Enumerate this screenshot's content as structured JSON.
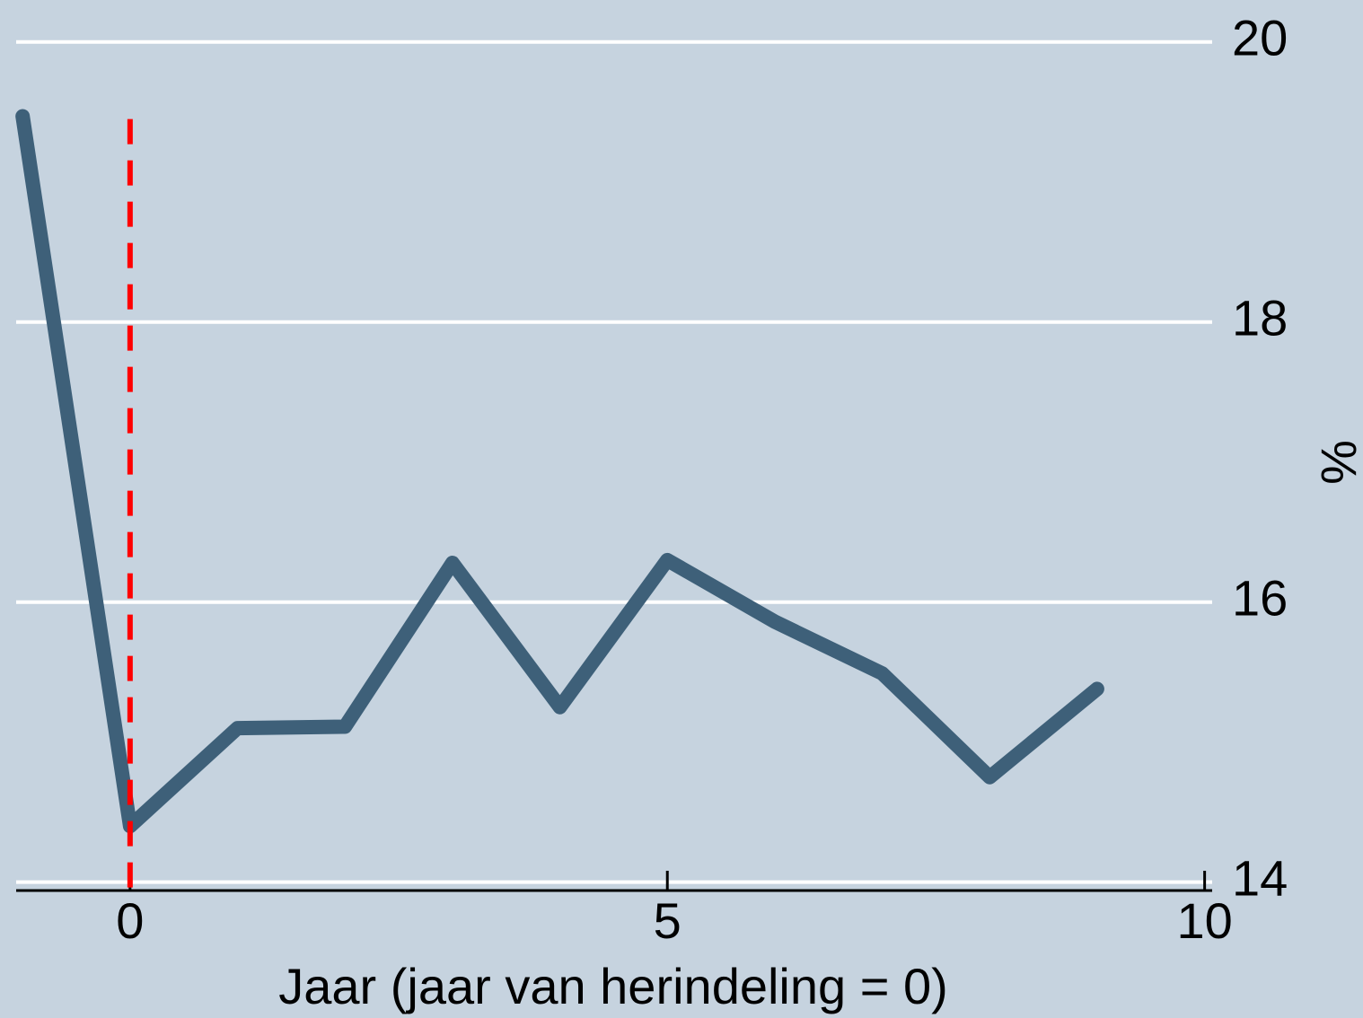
{
  "chart_data": {
    "type": "line",
    "x": [
      -1,
      0,
      1,
      2,
      3,
      4,
      5,
      6,
      7,
      8,
      9
    ],
    "series": [
      {
        "name": "%",
        "color": "#3e6079",
        "values": [
          19.47,
          14.4,
          15.1,
          15.11,
          16.28,
          15.25,
          16.3,
          15.86,
          15.49,
          14.75,
          15.38
        ]
      }
    ],
    "xlabel": "Jaar (jaar van herindeling = 0)",
    "ylabel": "%",
    "xlim": [
      -1.06,
      10.07
    ],
    "xticks": [
      0,
      5,
      10
    ],
    "ylim": [
      13.94,
      20.3
    ],
    "yticks": [
      14,
      16,
      18,
      20
    ],
    "grid": true,
    "vline": {
      "x": 0,
      "ymax": 19.45,
      "color": "#ff0000"
    }
  }
}
